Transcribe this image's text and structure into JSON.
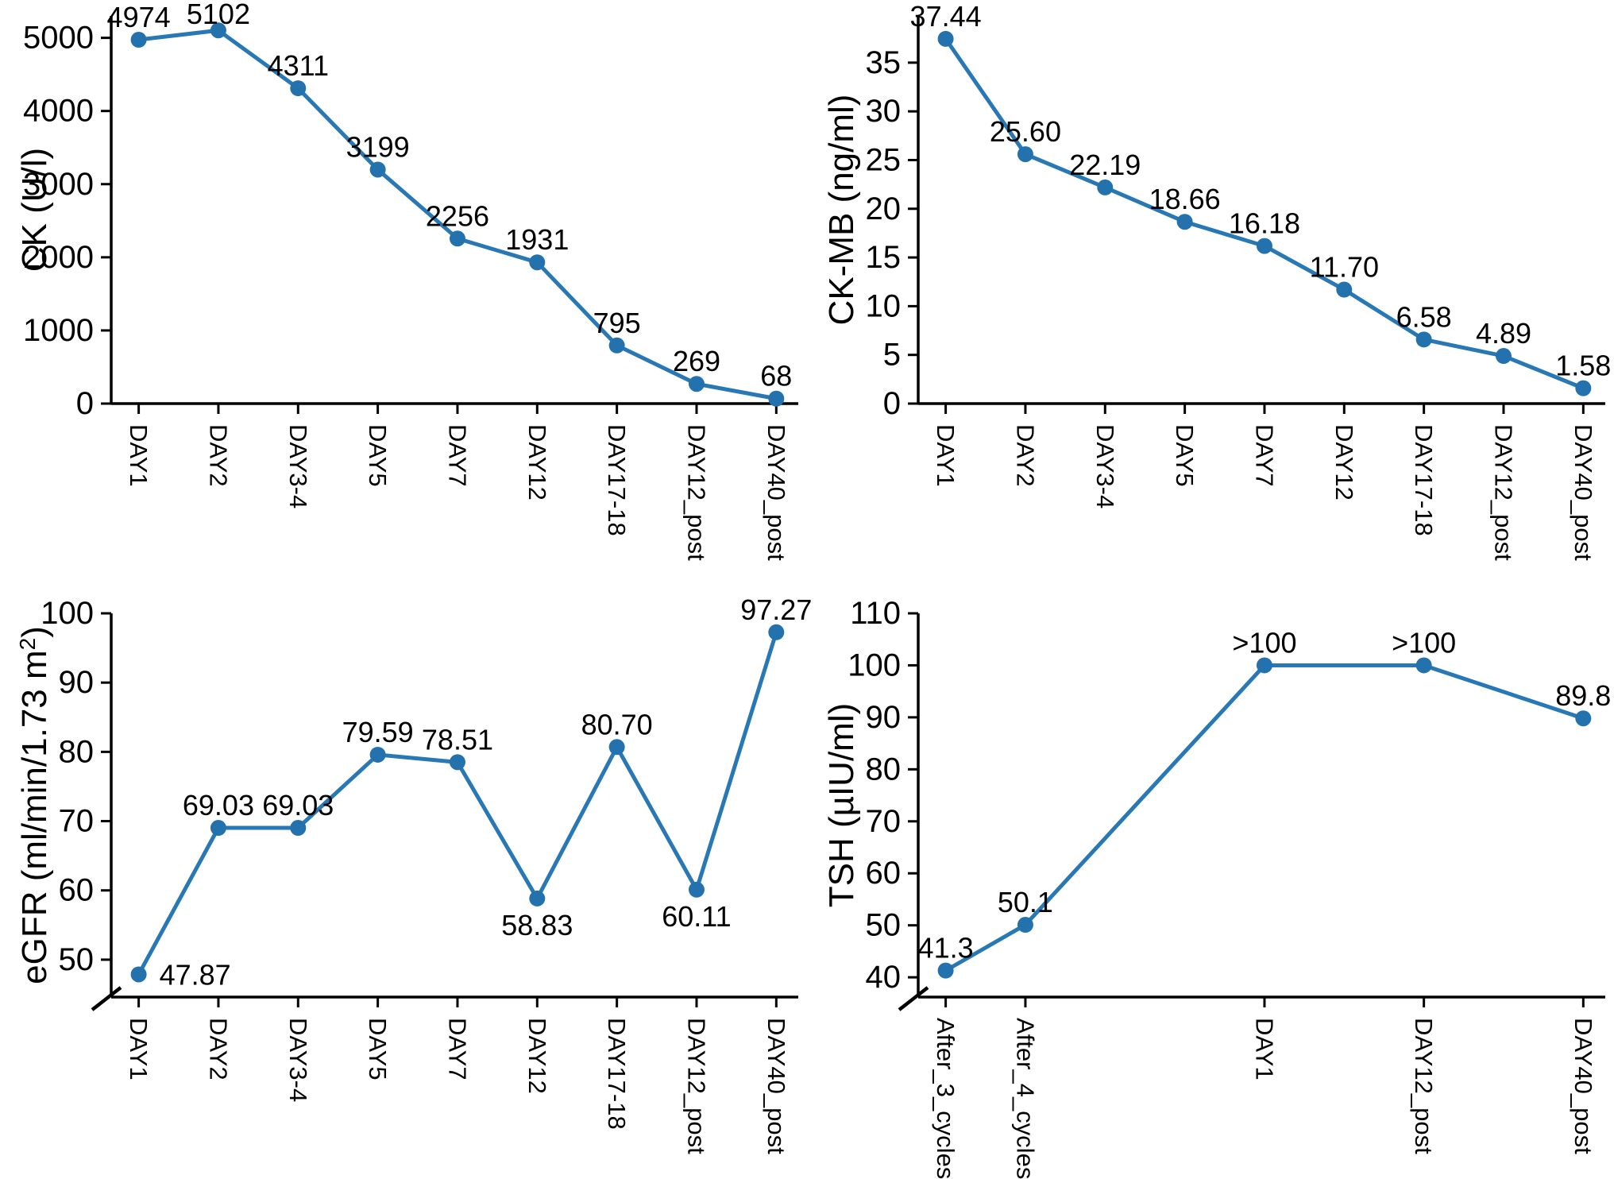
{
  "figure": {
    "background": "#ffffff",
    "line_color": "#2878b5",
    "marker_color": "#2372ae",
    "axis_color": "#000000"
  },
  "chart_data": [
    {
      "id": "ck",
      "type": "line",
      "position": "top-left",
      "title": "",
      "xlabel": "",
      "ylabel": "CK (U/l)",
      "categories": [
        "DAY1",
        "DAY2",
        "DAY3-4",
        "DAY5",
        "DAY7",
        "DAY12",
        "DAY17-18",
        "DAY12_post",
        "DAY40_post"
      ],
      "slots": [
        0,
        1,
        2,
        3,
        4,
        5,
        6,
        7,
        8
      ],
      "values": [
        4974,
        5102,
        4311,
        3199,
        2256,
        1931,
        795,
        269,
        68
      ],
      "point_labels": [
        "4974",
        "5102",
        "4311",
        "3199",
        "2256",
        "1931",
        "795",
        "269",
        "68"
      ],
      "label_placement": [
        "above",
        "above",
        "above",
        "above",
        "above",
        "above",
        "above",
        "above",
        "above"
      ],
      "yticks": [
        0,
        1000,
        2000,
        3000,
        4000,
        5000
      ],
      "ymin": 0,
      "ymax": 5300,
      "axis_break": false,
      "grid": false,
      "legend": null
    },
    {
      "id": "ckmb",
      "type": "line",
      "position": "top-right",
      "title": "",
      "xlabel": "",
      "ylabel": "CK-MB (ng/ml)",
      "categories": [
        "DAY1",
        "DAY2",
        "DAY3-4",
        "DAY5",
        "DAY7",
        "DAY12",
        "DAY17-18",
        "DAY12_post",
        "DAY40_post"
      ],
      "slots": [
        0,
        1,
        2,
        3,
        4,
        5,
        6,
        7,
        8
      ],
      "values": [
        37.44,
        25.6,
        22.19,
        18.66,
        16.18,
        11.7,
        6.58,
        4.89,
        1.58
      ],
      "point_labels": [
        "37.44",
        "25.60",
        "22.19",
        "18.66",
        "16.18",
        "11.70",
        "6.58",
        "4.89",
        "1.58"
      ],
      "label_placement": [
        "above",
        "above",
        "above",
        "above",
        "above",
        "above",
        "above",
        "above",
        "above"
      ],
      "yticks": [
        0,
        5,
        10,
        15,
        20,
        25,
        30,
        35
      ],
      "ymin": 0,
      "ymax": 39.8,
      "axis_break": false,
      "grid": false,
      "legend": null
    },
    {
      "id": "egfr",
      "type": "line",
      "position": "bottom-left",
      "title": "",
      "xlabel": "",
      "ylabel": "eGFR (ml/min/1.73 m²)",
      "categories": [
        "DAY1",
        "DAY2",
        "DAY3-4",
        "DAY5",
        "DAY7",
        "DAY12",
        "DAY17-18",
        "DAY12_post",
        "DAY40_post"
      ],
      "slots": [
        0,
        1,
        2,
        3,
        4,
        5,
        6,
        7,
        8
      ],
      "values": [
        47.87,
        69.03,
        69.03,
        79.59,
        78.51,
        58.83,
        80.7,
        60.11,
        97.27
      ],
      "point_labels": [
        "47.87",
        "69.03",
        "69.03",
        "79.59",
        "78.51",
        "58.83",
        "80.70",
        "60.11",
        "97.27"
      ],
      "label_placement": [
        "right",
        "above",
        "above",
        "above",
        "above",
        "below",
        "above",
        "below",
        "above"
      ],
      "yticks": [
        50,
        60,
        70,
        80,
        90,
        100
      ],
      "ymin": 44.6,
      "ymax": 100,
      "axis_break": true,
      "grid": false,
      "legend": null
    },
    {
      "id": "tsh",
      "type": "line",
      "position": "bottom-right",
      "title": "",
      "xlabel": "",
      "ylabel": "TSH (µIU/ml)",
      "categories": [
        "After_3_cycles",
        "After_4_cycles",
        "DAY1",
        "DAY12_post",
        "DAY40_post"
      ],
      "slots": [
        0,
        1,
        4,
        6,
        8
      ],
      "values": [
        41.3,
        50.1,
        100,
        100,
        89.8
      ],
      "point_labels": [
        "41.3",
        "50.1",
        ">100",
        ">100",
        "89.8"
      ],
      "label_placement": [
        "above",
        "above",
        "above",
        "above",
        "above"
      ],
      "yticks": [
        40,
        50,
        60,
        70,
        80,
        90,
        100,
        110
      ],
      "ymin": 36.2,
      "ymax": 110,
      "axis_break": true,
      "grid": false,
      "legend": null
    }
  ]
}
